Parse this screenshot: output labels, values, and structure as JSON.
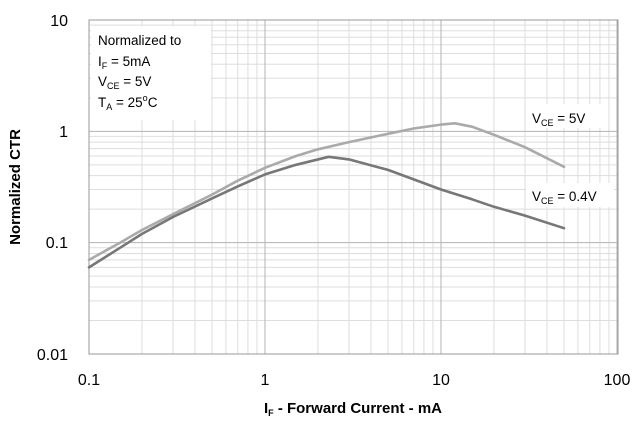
{
  "chart_data": {
    "type": "line",
    "xlabel": {
      "main": "I",
      "sub": "F",
      "rest": " - Forward Current - mA"
    },
    "ylabel": "Normalized CTR",
    "x_scale": "log",
    "y_scale": "log",
    "xlim": [
      0.1,
      100
    ],
    "ylim": [
      0.01,
      10
    ],
    "x_ticks": [
      "0.1",
      "1",
      "10",
      "100"
    ],
    "y_ticks": [
      "0.01",
      "0.1",
      "1",
      "10"
    ],
    "grid": true,
    "annotation": [
      {
        "text": "Normalized to"
      },
      {
        "main": "I",
        "sub": "F",
        "rest": " = 5mA"
      },
      {
        "main": "V",
        "sub": "CE",
        "rest": " = 5V"
      },
      {
        "main": "T",
        "sub": "A",
        "rest": " = 25",
        "sup": "o",
        "rest2": "C"
      }
    ],
    "series": [
      {
        "label": {
          "main": "V",
          "sub": "CE",
          "rest": " = 5V"
        },
        "color": "#aaaaaa",
        "x": [
          0.1,
          0.15,
          0.2,
          0.3,
          0.5,
          0.7,
          1,
          1.5,
          2,
          3,
          5,
          7,
          10,
          12,
          15,
          20,
          30,
          50
        ],
        "y": [
          0.07,
          0.1,
          0.13,
          0.18,
          0.27,
          0.36,
          0.47,
          0.6,
          0.69,
          0.8,
          0.95,
          1.06,
          1.15,
          1.18,
          1.1,
          0.93,
          0.72,
          0.48
        ]
      },
      {
        "label": {
          "main": "V",
          "sub": "CE",
          "rest": " = 0.4V"
        },
        "color": "#777777",
        "x": [
          0.1,
          0.15,
          0.2,
          0.3,
          0.5,
          0.7,
          1,
          1.5,
          2.3,
          3,
          5,
          7,
          10,
          15,
          20,
          30,
          50
        ],
        "y": [
          0.06,
          0.09,
          0.12,
          0.17,
          0.25,
          0.32,
          0.41,
          0.5,
          0.59,
          0.56,
          0.45,
          0.37,
          0.3,
          0.245,
          0.21,
          0.175,
          0.135
        ]
      }
    ]
  }
}
